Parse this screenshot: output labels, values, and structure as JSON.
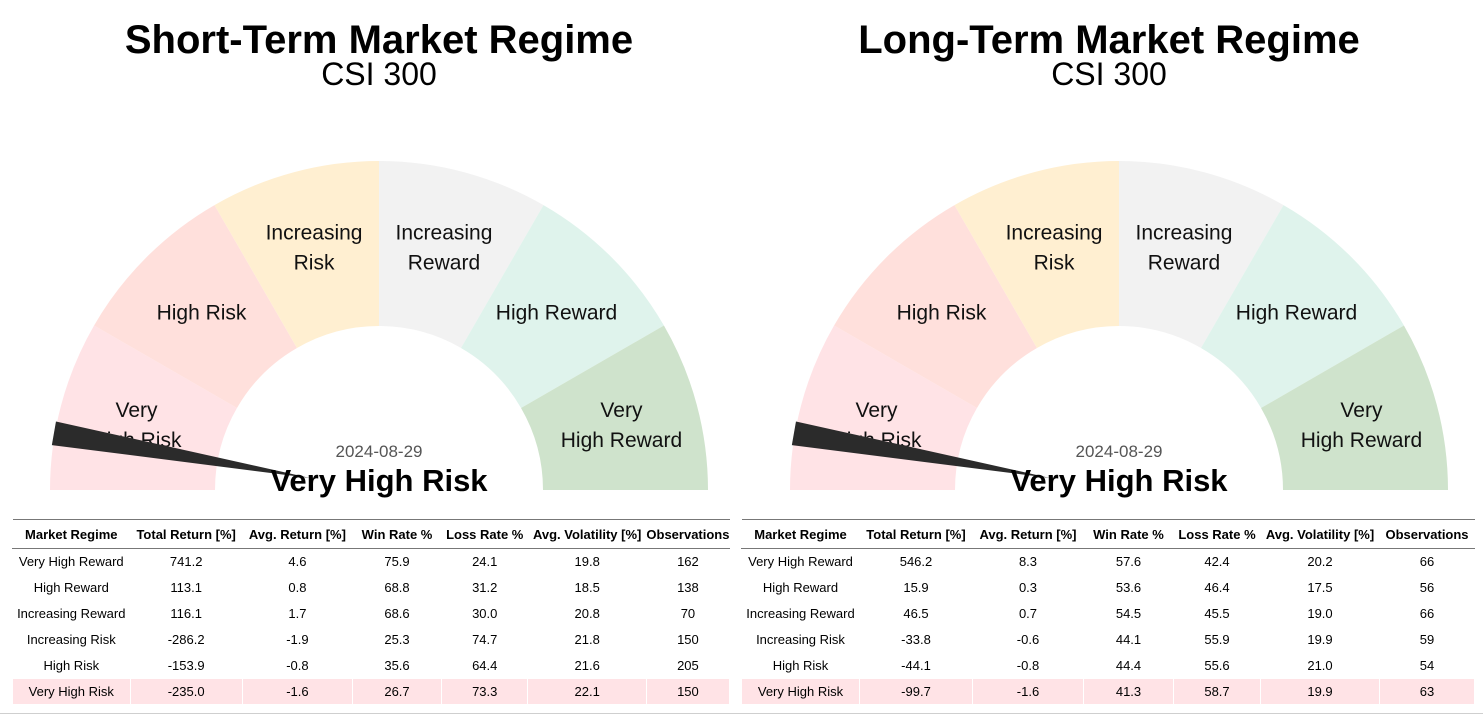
{
  "colors": {
    "very_high_risk": "#ffe3e6",
    "high_risk": "#ffe0dc",
    "increasing_risk": "#ffefd1",
    "increasing_reward": "#f2f2f2",
    "high_reward": "#dff3ec",
    "very_high_reward": "#cfe3cc",
    "needle": "#2b2b2b",
    "highlight_row": "#ffe3e6"
  },
  "chart_data": [
    {
      "type": "gauge",
      "title": "Short-Term Market Regime",
      "subtitle": "CSI 300",
      "segments": [
        {
          "lines": [
            "Very",
            "High Risk"
          ],
          "color_key": "very_high_risk"
        },
        {
          "lines": [
            "High Risk"
          ],
          "color_key": "high_risk"
        },
        {
          "lines": [
            "Increasing",
            "Risk"
          ],
          "color_key": "increasing_risk"
        },
        {
          "lines": [
            "Increasing",
            "Reward"
          ],
          "color_key": "increasing_reward"
        },
        {
          "lines": [
            "High Reward"
          ],
          "color_key": "high_reward"
        },
        {
          "lines": [
            "Very",
            "High Reward"
          ],
          "color_key": "very_high_reward"
        }
      ],
      "needle_value": 0.055,
      "date": "2024-08-29",
      "current_regime": "Very High Risk",
      "table": {
        "columns": [
          "Market Regime",
          "Total Return [%]",
          "Avg. Return [%]",
          "Win Rate %",
          "Loss Rate %",
          "Avg. Volatility [%]",
          "Observations"
        ],
        "rows": [
          [
            "Very High Reward",
            "741.2",
            "4.6",
            "75.9",
            "24.1",
            "19.8",
            "162"
          ],
          [
            "High Reward",
            "113.1",
            "0.8",
            "68.8",
            "31.2",
            "18.5",
            "138"
          ],
          [
            "Increasing Reward",
            "116.1",
            "1.7",
            "68.6",
            "30.0",
            "20.8",
            "70"
          ],
          [
            "Increasing Risk",
            "-286.2",
            "-1.9",
            "25.3",
            "74.7",
            "21.8",
            "150"
          ],
          [
            "High Risk",
            "-153.9",
            "-0.8",
            "35.6",
            "64.4",
            "21.6",
            "205"
          ],
          [
            "Very High Risk",
            "-235.0",
            "-1.6",
            "26.7",
            "73.3",
            "22.1",
            "150"
          ]
        ],
        "highlighted_regime": "Very High Risk"
      }
    },
    {
      "type": "gauge",
      "title": "Long-Term Market Regime",
      "subtitle": "CSI 300",
      "segments": [
        {
          "lines": [
            "Very",
            "High Risk"
          ],
          "color_key": "very_high_risk"
        },
        {
          "lines": [
            "High Risk"
          ],
          "color_key": "high_risk"
        },
        {
          "lines": [
            "Increasing",
            "Risk"
          ],
          "color_key": "increasing_risk"
        },
        {
          "lines": [
            "Increasing",
            "Reward"
          ],
          "color_key": "increasing_reward"
        },
        {
          "lines": [
            "High Reward"
          ],
          "color_key": "high_reward"
        },
        {
          "lines": [
            "Very",
            "High Reward"
          ],
          "color_key": "very_high_reward"
        }
      ],
      "needle_value": 0.055,
      "date": "2024-08-29",
      "current_regime": "Very High Risk",
      "table": {
        "columns": [
          "Market Regime",
          "Total Return [%]",
          "Avg. Return [%]",
          "Win Rate %",
          "Loss Rate %",
          "Avg. Volatility [%]",
          "Observations"
        ],
        "rows": [
          [
            "Very High Reward",
            "546.2",
            "8.3",
            "57.6",
            "42.4",
            "20.2",
            "66"
          ],
          [
            "High Reward",
            "15.9",
            "0.3",
            "53.6",
            "46.4",
            "17.5",
            "56"
          ],
          [
            "Increasing Reward",
            "46.5",
            "0.7",
            "54.5",
            "45.5",
            "19.0",
            "66"
          ],
          [
            "Increasing Risk",
            "-33.8",
            "-0.6",
            "44.1",
            "55.9",
            "19.9",
            "59"
          ],
          [
            "High Risk",
            "-44.1",
            "-0.8",
            "44.4",
            "55.6",
            "21.0",
            "54"
          ],
          [
            "Very High Risk",
            "-99.7",
            "-1.6",
            "41.3",
            "58.7",
            "19.9",
            "63"
          ]
        ],
        "highlighted_regime": "Very High Risk"
      }
    }
  ]
}
